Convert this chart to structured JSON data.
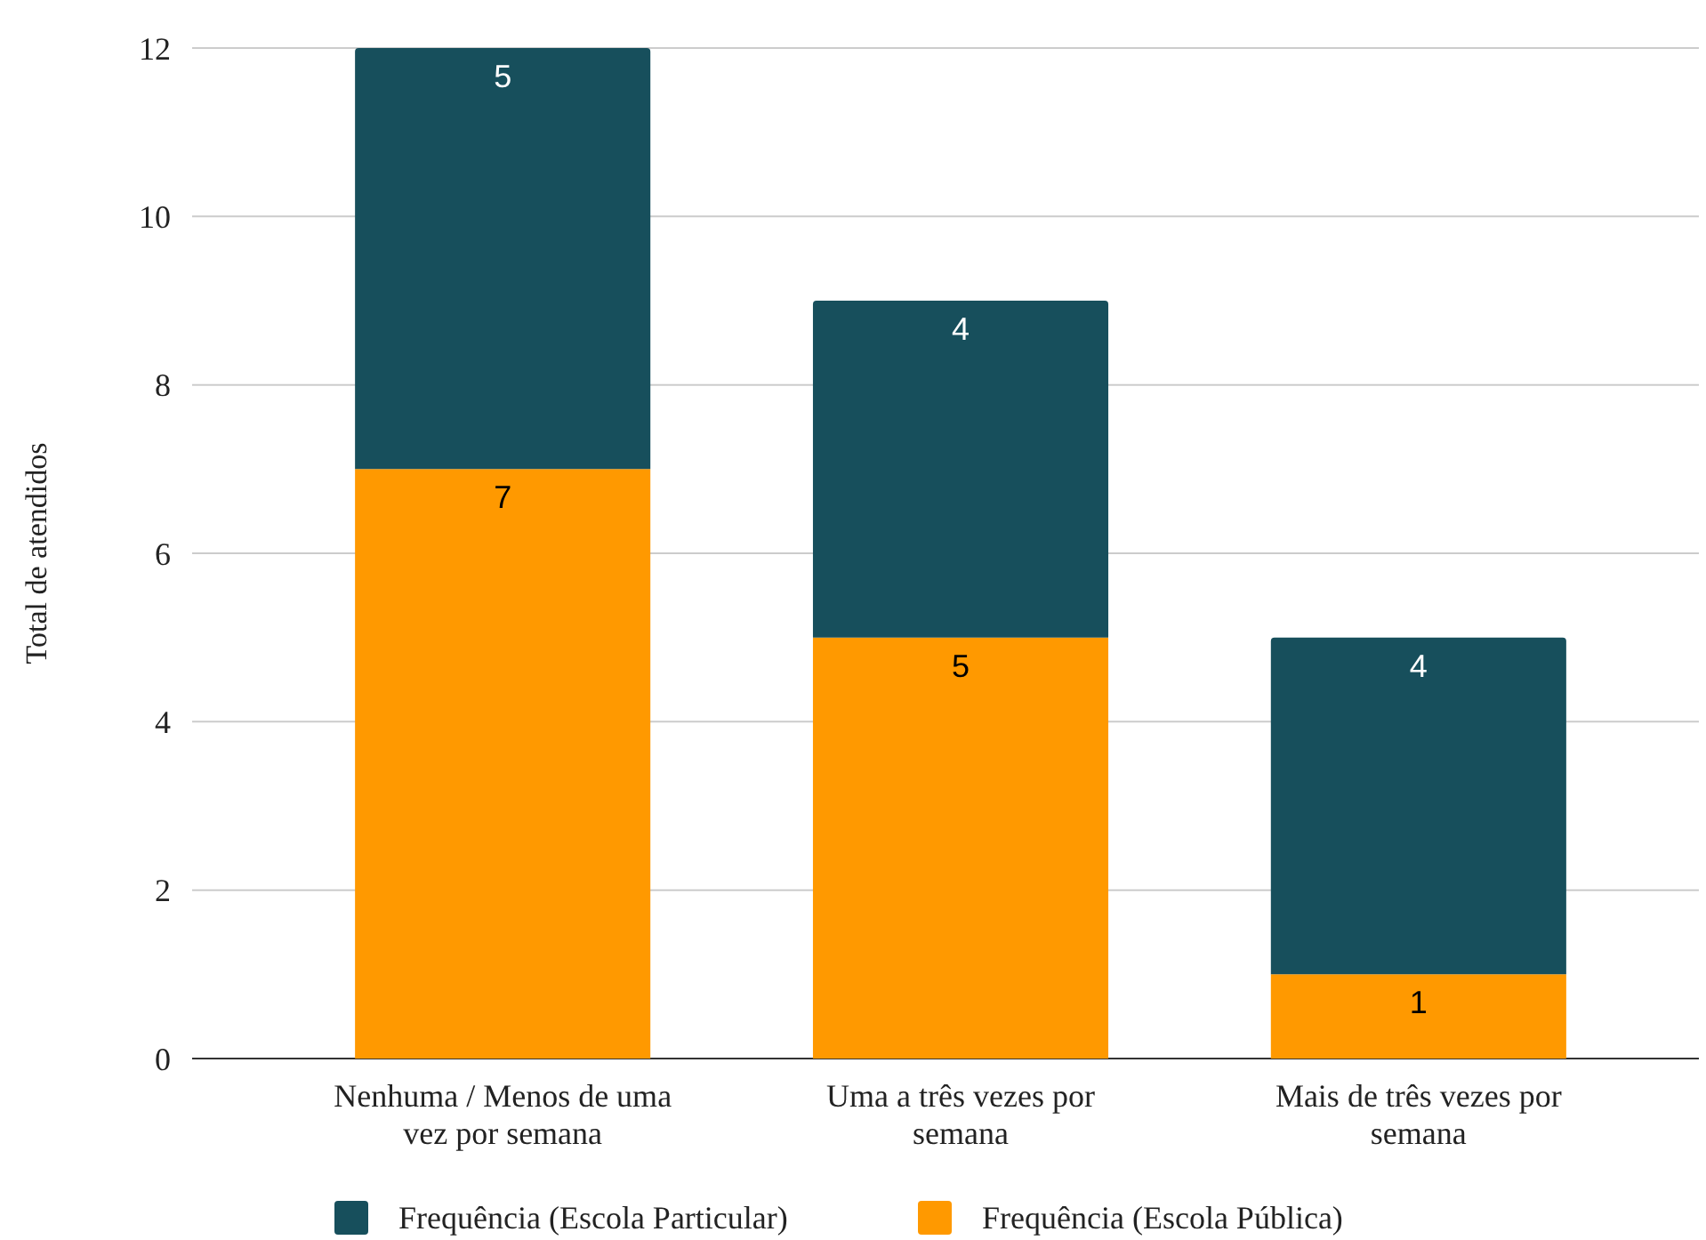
{
  "chart_data": {
    "type": "bar",
    "stacked": true,
    "ylabel": "Total de atendidos",
    "categories": [
      "Nenhuma / Menos de uma vez por semana",
      "Uma a três vezes por semana",
      "Mais de três vezes por semana"
    ],
    "series": [
      {
        "name": "Frequência (Escola Pública)",
        "color": "#ff9900",
        "values": [
          7,
          5,
          1
        ]
      },
      {
        "name": "Frequência (Escola Particular)",
        "color": "#174f5c",
        "values": [
          5,
          4,
          4
        ]
      }
    ],
    "ylim": [
      0,
      12
    ],
    "yticks": [
      0,
      2,
      4,
      6,
      8,
      10,
      12
    ],
    "grid": "y",
    "legend": "bottom",
    "data_labels": true
  }
}
